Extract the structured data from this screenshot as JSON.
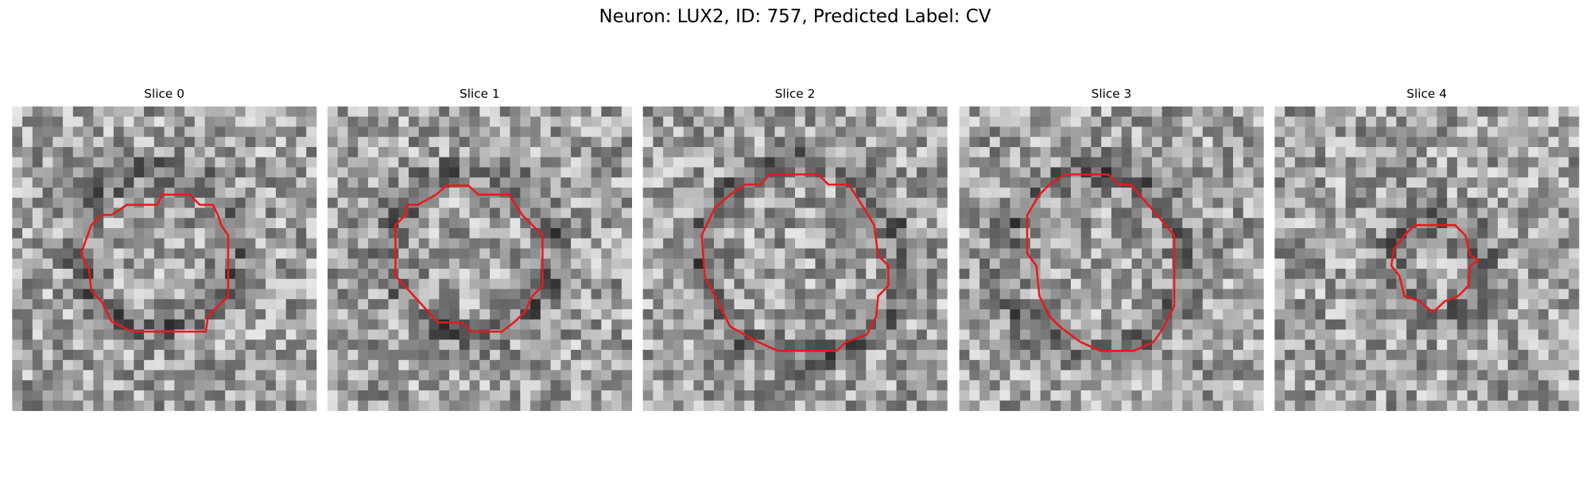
{
  "title": "Neuron: LUX2, ID: 757, Predicted Label: CV",
  "panels": [
    {
      "title": "Slice 0"
    },
    {
      "title": "Slice 1"
    },
    {
      "title": "Slice 2"
    },
    {
      "title": "Slice 3"
    },
    {
      "title": "Slice 4"
    }
  ]
}
